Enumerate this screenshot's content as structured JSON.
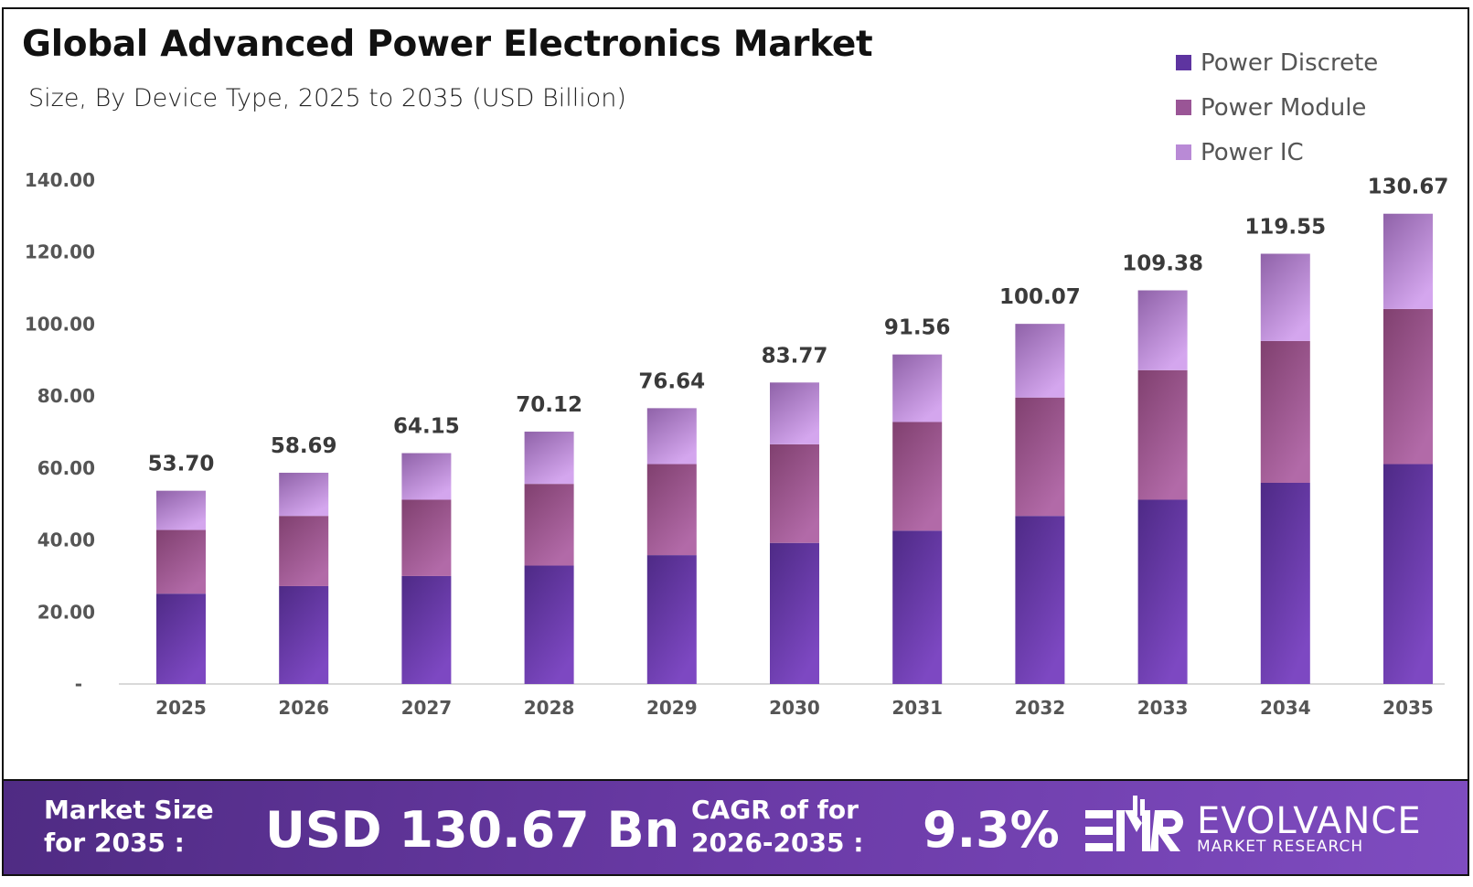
{
  "chart_data": {
    "type": "bar",
    "stacked": true,
    "title": "Global Advanced Power Electronics Market",
    "subtitle": "Size, By Device Type, 2025 to 2035 (USD Billion)",
    "categories": [
      "2025",
      "2026",
      "2027",
      "2028",
      "2029",
      "2030",
      "2031",
      "2032",
      "2033",
      "2034",
      "2035"
    ],
    "series": [
      {
        "name": "Power Discrete",
        "color": "#5e34a0",
        "values": [
          25.1,
          27.2,
          30.0,
          32.9,
          35.8,
          39.2,
          42.6,
          46.7,
          51.2,
          55.9,
          61.1
        ]
      },
      {
        "name": "Power Module",
        "color": "#9a5596",
        "values": [
          17.7,
          19.5,
          21.2,
          22.7,
          25.3,
          27.4,
          30.2,
          32.9,
          36.0,
          39.4,
          43.1
        ]
      },
      {
        "name": "Power IC",
        "color": "#b98ad6",
        "values": [
          10.9,
          12.0,
          12.95,
          14.52,
          15.54,
          17.17,
          18.76,
          20.47,
          22.18,
          24.25,
          26.47
        ]
      }
    ],
    "totals": [
      "53.70",
      "58.69",
      "64.15",
      "70.12",
      "76.64",
      "83.77",
      "91.56",
      "100.07",
      "109.38",
      "119.55",
      "130.67"
    ],
    "yticks": [
      "-",
      "20.00",
      "40.00",
      "60.00",
      "80.00",
      "100.00",
      "120.00",
      "140.00"
    ],
    "ylim": [
      0,
      140
    ],
    "grid": false,
    "legend": "top-right"
  },
  "banner": {
    "market_label_1": "Market Size",
    "market_label_2": "for 2035 :",
    "market_value": "USD 130.67 Bn",
    "cagr_label_1": "CAGR of for",
    "cagr_label_2": "2026-2035 :",
    "cagr_value": "9.3%",
    "logo_mark": "EMR",
    "logo_name": "EVOLVANCE",
    "logo_sub": "MARKET RESEARCH"
  }
}
